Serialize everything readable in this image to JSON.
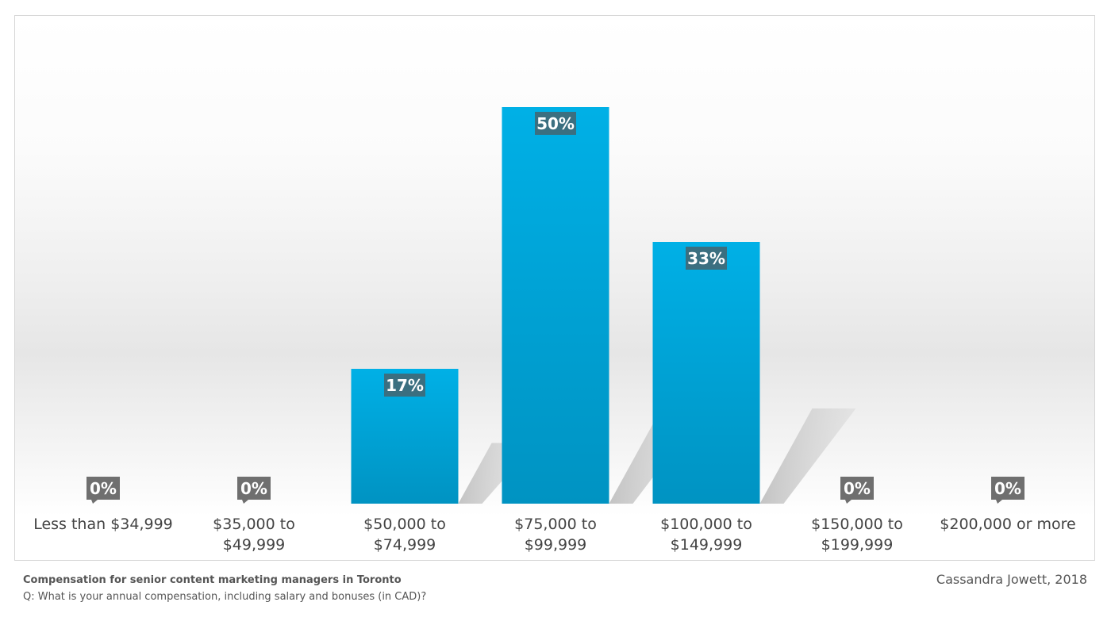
{
  "chart_data": {
    "type": "bar",
    "categories": [
      "Less than $34,999",
      "$35,000 to\n$49,999",
      "$50,000 to\n$74,999",
      "$75,000 to\n$99,999",
      "$100,000 to\n$149,999",
      "$150,000 to\n$199,999",
      "$200,000 or more"
    ],
    "values": [
      0,
      0,
      17,
      50,
      33,
      0,
      0
    ],
    "data_labels": [
      "0%",
      "0%",
      "17%",
      "50%",
      "33%",
      "0%",
      "0%"
    ],
    "ylim": [
      0,
      50
    ],
    "grid": false,
    "legend": "none",
    "title": "Compensation for senior content marketing managers in Toronto",
    "subtitle": "Q: What is your annual compensation, including salary and bonuses (in CAD)?",
    "credit": "Cassandra Jowett, 2018",
    "colors": {
      "bar_top": "#00b0e6",
      "bar_bottom": "#0093c2",
      "label_box": "#3b6f80",
      "zero_label_box": "#6f6f6f",
      "shadow": "#c4c4c4"
    }
  }
}
